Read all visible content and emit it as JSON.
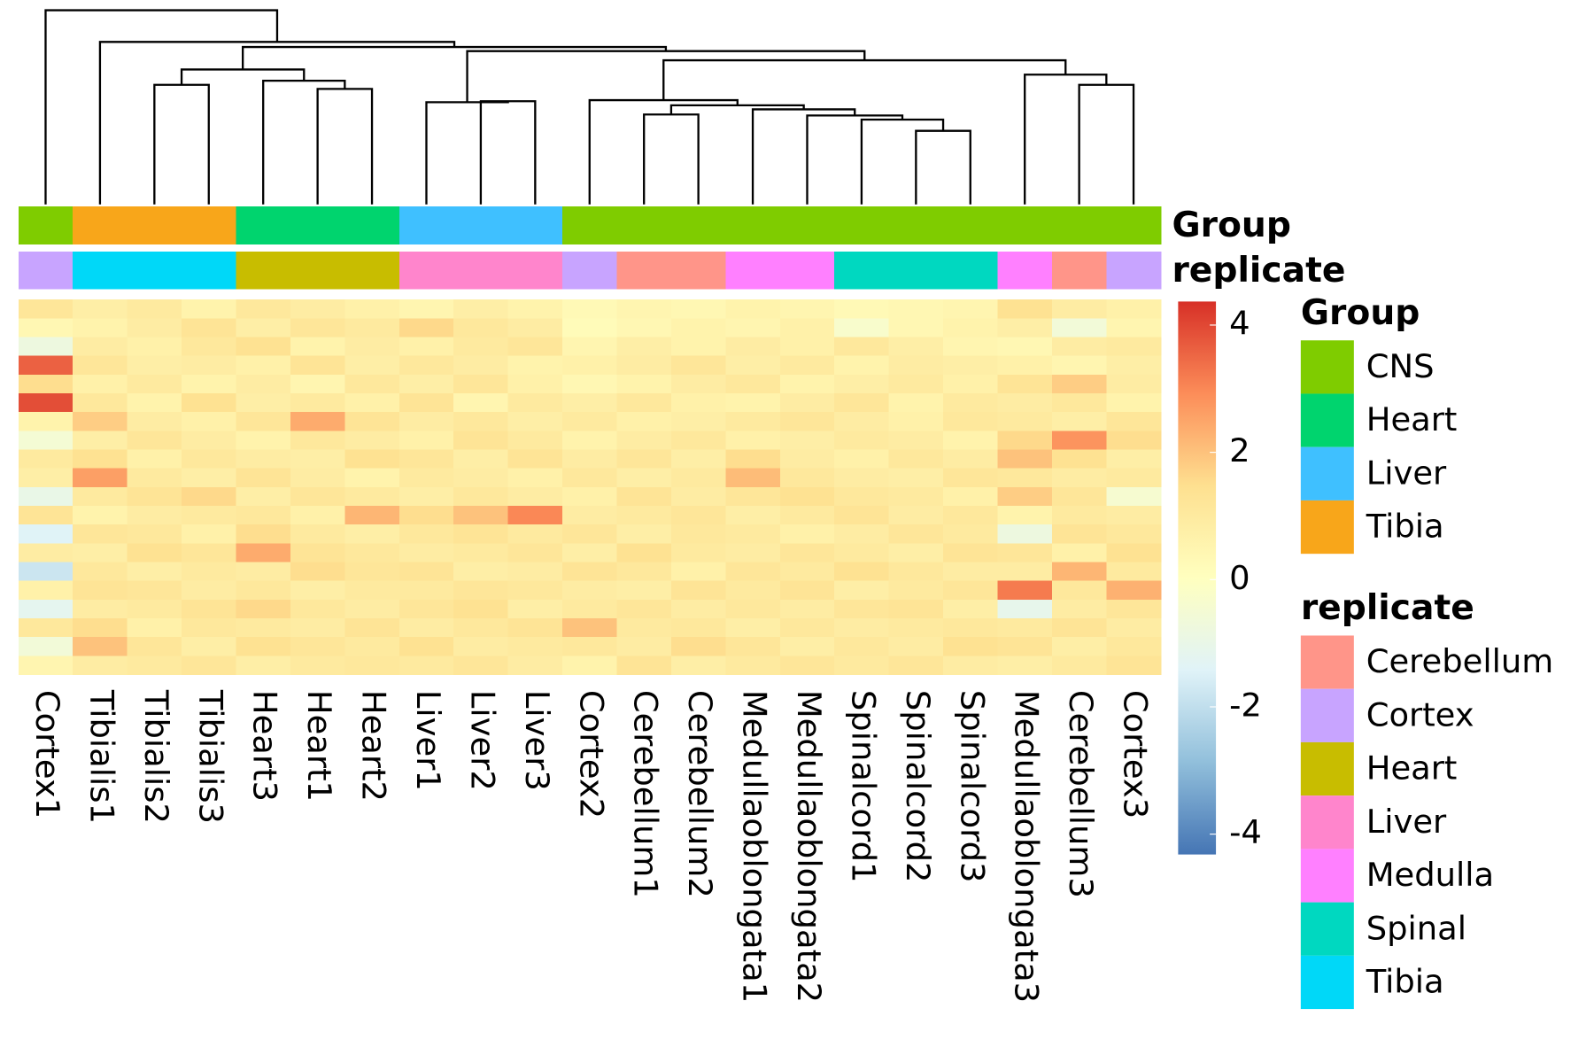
{
  "chart_data": {
    "type": "heatmap",
    "columns": [
      "Cortex1",
      "Tibialis1",
      "Tibialis2",
      "Tibialis3",
      "Heart3",
      "Heart1",
      "Heart2",
      "Liver1",
      "Liver2",
      "Liver3",
      "Cortex2",
      "Cerebellum1",
      "Cerebellum2",
      "Medullaoblongata1",
      "Medullaoblongata2",
      "Spinalcord1",
      "Spinalcord2",
      "Spinalcord3",
      "Medullaoblongata3",
      "Cerebellum3",
      "Cortex3"
    ],
    "annotations": [
      {
        "name": "Group",
        "values": [
          "CNS",
          "Tibia",
          "Tibia",
          "Tibia",
          "Heart",
          "Heart",
          "Heart",
          "Liver",
          "Liver",
          "Liver",
          "CNS",
          "CNS",
          "CNS",
          "CNS",
          "CNS",
          "CNS",
          "CNS",
          "CNS",
          "CNS",
          "CNS",
          "CNS"
        ],
        "levels": [
          "CNS",
          "Heart",
          "Liver",
          "Tibia"
        ],
        "colors": [
          "#7fcc00",
          "#00d46e",
          "#3fc0ff",
          "#f8a61a"
        ]
      },
      {
        "name": "replicate",
        "values": [
          "Cortex",
          "Tibia",
          "Tibia",
          "Tibia",
          "Heart",
          "Heart",
          "Heart",
          "Liver",
          "Liver",
          "Liver",
          "Cortex",
          "Cerebellum",
          "Cerebellum",
          "Medulla",
          "Medulla",
          "Spinal",
          "Spinal",
          "Spinal",
          "Medulla",
          "Cerebellum",
          "Cortex"
        ],
        "levels": [
          "Cerebellum",
          "Cortex",
          "Heart",
          "Liver",
          "Medulla",
          "Spinal",
          "Tibia"
        ],
        "colors": [
          "#ff9589",
          "#c8a4ff",
          "#c8bd00",
          "#ff85cc",
          "#ff80ff",
          "#00d8c0",
          "#00d8f8"
        ]
      }
    ],
    "values": [
      [
        1.2,
        0.8,
        1.0,
        0.6,
        1.1,
        0.9,
        0.7,
        0.5,
        0.8,
        0.6,
        0.3,
        0.5,
        0.4,
        0.6,
        0.5,
        0.3,
        0.4,
        0.5,
        1.4,
        0.9,
        0.7
      ],
      [
        0.4,
        0.6,
        0.9,
        1.3,
        0.8,
        1.2,
        1.0,
        1.6,
        1.1,
        0.9,
        0.2,
        0.4,
        0.6,
        0.5,
        0.7,
        -0.3,
        0.4,
        0.6,
        0.8,
        -0.6,
        0.5
      ],
      [
        -0.8,
        0.9,
        0.7,
        1.1,
        1.4,
        0.6,
        0.9,
        0.7,
        1.0,
        1.2,
        0.5,
        0.8,
        0.6,
        0.9,
        0.7,
        1.1,
        0.8,
        0.5,
        0.4,
        0.9,
        1.0
      ],
      [
        3.6,
        1.2,
        0.8,
        0.9,
        0.7,
        1.3,
        0.8,
        1.1,
        0.9,
        0.6,
        0.7,
        0.9,
        1.2,
        0.8,
        1.0,
        0.6,
        0.9,
        0.8,
        0.7,
        0.5,
        0.8
      ],
      [
        1.5,
        0.7,
        1.0,
        0.6,
        0.9,
        0.5,
        1.1,
        0.8,
        1.2,
        0.7,
        0.4,
        0.6,
        0.9,
        1.1,
        0.6,
        0.8,
        1.0,
        0.7,
        1.3,
        1.8,
        0.9
      ],
      [
        3.9,
        1.1,
        0.6,
        1.4,
        0.8,
        1.0,
        0.7,
        1.3,
        0.5,
        1.0,
        0.8,
        1.1,
        0.7,
        0.6,
        0.9,
        1.2,
        0.6,
        1.0,
        0.9,
        1.1,
        0.6
      ],
      [
        0.6,
        1.8,
        0.9,
        0.7,
        1.2,
        2.4,
        1.3,
        0.9,
        1.1,
        0.8,
        1.0,
        0.7,
        0.8,
        1.0,
        1.2,
        0.9,
        0.7,
        1.1,
        1.0,
        0.8,
        1.2
      ],
      [
        -0.5,
        0.8,
        1.2,
        0.9,
        0.6,
        1.1,
        0.9,
        0.7,
        1.3,
        1.0,
        0.6,
        0.9,
        1.1,
        0.7,
        0.8,
        1.0,
        0.9,
        0.6,
        1.6,
        2.8,
        1.5
      ],
      [
        1.0,
        1.4,
        0.7,
        1.1,
        0.9,
        0.8,
        1.4,
        1.2,
        0.8,
        1.3,
        0.9,
        1.2,
        0.8,
        1.5,
        0.9,
        0.7,
        1.1,
        0.9,
        2.0,
        1.4,
        0.8
      ],
      [
        0.8,
        2.6,
        1.0,
        0.8,
        1.3,
        0.9,
        0.6,
        1.0,
        0.9,
        0.7,
        1.1,
        0.8,
        1.0,
        2.1,
        1.1,
        0.9,
        0.8,
        1.2,
        1.1,
        0.9,
        1.0
      ],
      [
        -1.0,
        1.0,
        1.3,
        1.6,
        0.8,
        1.2,
        1.0,
        0.8,
        1.1,
        0.9,
        0.7,
        1.3,
        0.9,
        1.2,
        1.4,
        1.1,
        1.0,
        0.7,
        1.8,
        1.2,
        -0.4
      ],
      [
        1.3,
        0.6,
        0.9,
        1.0,
        1.1,
        0.7,
        2.2,
        1.5,
        2.0,
        3.0,
        0.9,
        1.0,
        1.2,
        0.8,
        1.0,
        1.3,
        0.9,
        1.1,
        0.6,
        1.0,
        0.9
      ],
      [
        -1.4,
        1.2,
        1.1,
        0.7,
        1.5,
        1.0,
        0.8,
        1.1,
        1.3,
        1.0,
        1.2,
        0.8,
        1.1,
        1.0,
        0.7,
        0.9,
        1.2,
        1.0,
        -0.8,
        1.3,
        1.1
      ],
      [
        0.9,
        0.8,
        1.4,
        1.2,
        2.4,
        1.3,
        1.1,
        0.9,
        1.0,
        1.2,
        0.8,
        1.4,
        1.0,
        0.9,
        1.2,
        1.0,
        0.8,
        1.3,
        1.2,
        0.7,
        1.4
      ],
      [
        -1.8,
        1.1,
        0.8,
        1.0,
        0.9,
        1.5,
        1.2,
        1.3,
        0.8,
        0.9,
        1.3,
        1.1,
        0.7,
        1.2,
        1.0,
        1.4,
        1.1,
        0.9,
        0.9,
        2.2,
        1.0
      ],
      [
        0.7,
        1.3,
        1.2,
        0.9,
        1.1,
        0.8,
        1.0,
        1.0,
        1.2,
        1.1,
        0.9,
        0.8,
        1.3,
        1.0,
        1.3,
        0.8,
        1.0,
        1.2,
        3.2,
        1.1,
        2.3
      ],
      [
        -1.2,
        0.9,
        1.0,
        1.3,
        1.6,
        1.1,
        0.9,
        1.2,
        1.4,
        0.8,
        1.0,
        1.2,
        0.9,
        1.1,
        0.9,
        1.2,
        1.3,
        0.8,
        -1.1,
        0.9,
        1.2
      ],
      [
        1.1,
        1.5,
        0.7,
        1.1,
        1.0,
        0.9,
        1.3,
        0.9,
        1.1,
        1.3,
        2.0,
        1.0,
        1.1,
        0.8,
        1.1,
        0.9,
        1.0,
        1.1,
        1.0,
        1.3,
        0.9
      ],
      [
        -0.6,
        2.0,
        1.2,
        0.8,
        1.4,
        1.2,
        1.0,
        1.4,
        0.9,
        1.0,
        1.1,
        0.9,
        1.5,
        1.2,
        0.8,
        1.1,
        0.9,
        1.4,
        1.3,
        0.8,
        1.1
      ],
      [
        0.5,
        0.9,
        1.0,
        1.2,
        0.8,
        1.0,
        1.1,
        1.0,
        1.2,
        0.9,
        0.6,
        1.3,
        0.8,
        1.0,
        1.2,
        1.0,
        1.2,
        0.9,
        0.8,
        1.0,
        1.3
      ]
    ],
    "zlim": [
      -4.32,
      4.37
    ],
    "zticks": [
      4,
      2,
      0,
      -2,
      -4
    ],
    "colors": [
      "#4575b4",
      "#91bfdb",
      "#e0f3f8",
      "#ffffbf",
      "#fee090",
      "#fc8d59",
      "#d73027"
    ],
    "dendrogram": [
      [
        2,
        3,
        117
      ],
      [
        5,
        6,
        113
      ],
      [
        4,
        22,
        121
      ],
      [
        21,
        23,
        132
      ],
      [
        8,
        9,
        101
      ],
      [
        7,
        25,
        100
      ],
      [
        11,
        12,
        88
      ],
      [
        16,
        17,
        72
      ],
      [
        15,
        28,
        83
      ],
      [
        14,
        29,
        87
      ],
      [
        13,
        30,
        93
      ],
      [
        27,
        31,
        97
      ],
      [
        10,
        32,
        102
      ],
      [
        19,
        20,
        117
      ],
      [
        18,
        34,
        127
      ],
      [
        33,
        35,
        141
      ],
      [
        26,
        36,
        150
      ],
      [
        24,
        37,
        154
      ],
      [
        1,
        38,
        159
      ],
      [
        0,
        39,
        190
      ]
    ]
  }
}
